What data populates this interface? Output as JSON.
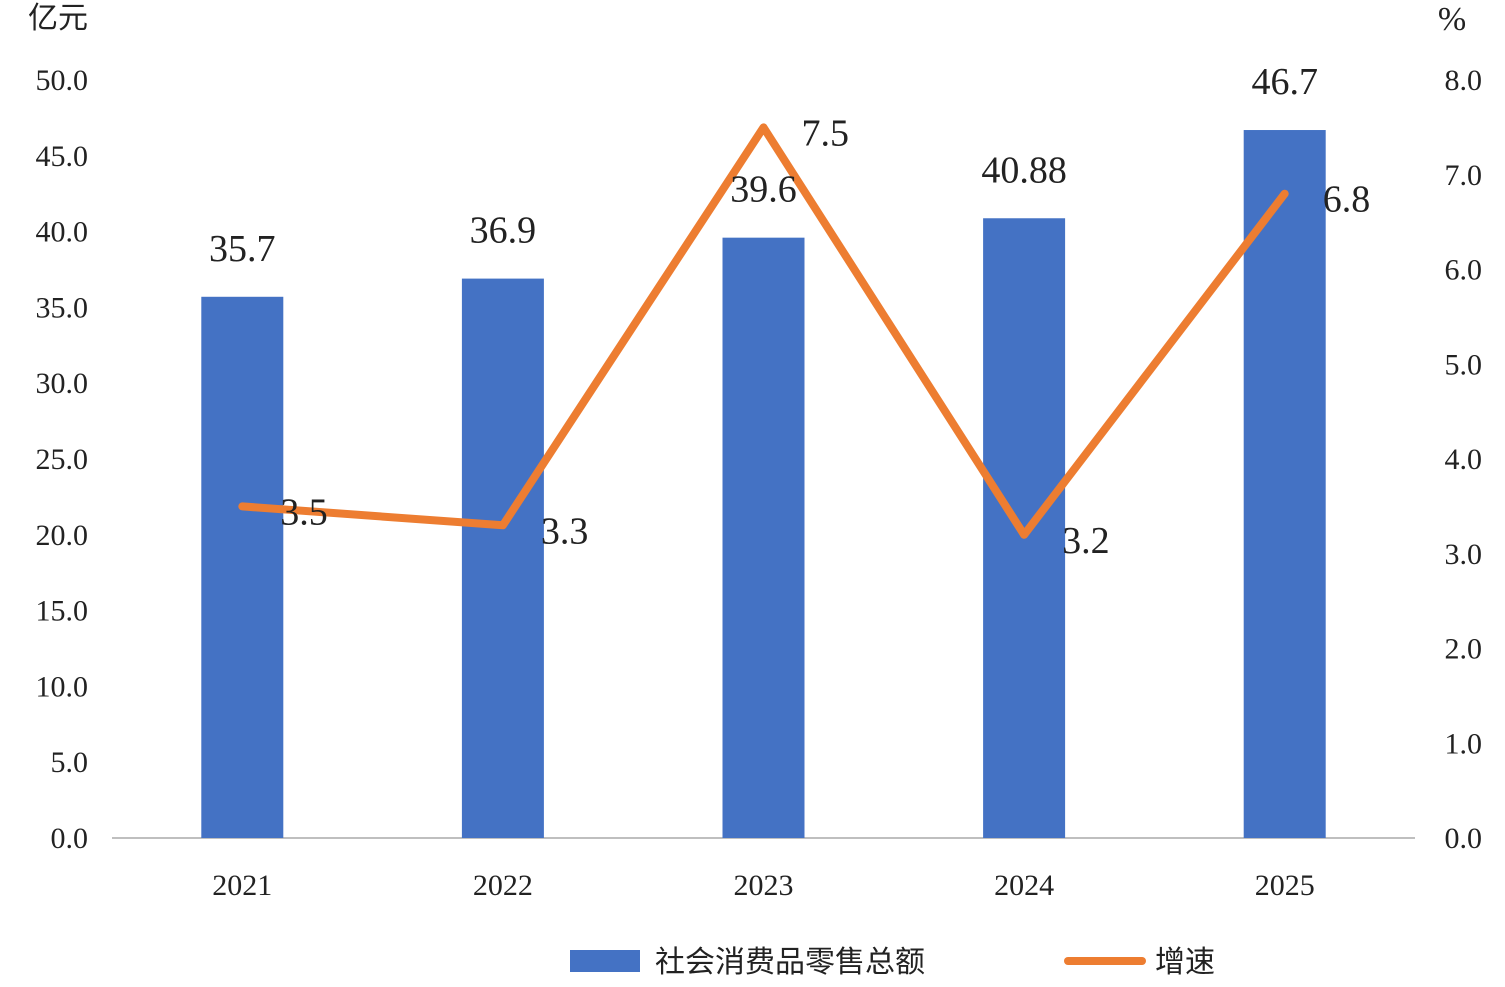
{
  "chart_data": {
    "type": "bar",
    "title": "",
    "left_unit": "亿元",
    "right_unit": "%",
    "categories": [
      "2021",
      "2022",
      "2023",
      "2024",
      "2025"
    ],
    "left_ylim": [
      0,
      50
    ],
    "left_ticks": [
      "0.0",
      "5.0",
      "10.0",
      "15.0",
      "20.0",
      "25.0",
      "30.0",
      "35.0",
      "40.0",
      "45.0",
      "50.0"
    ],
    "right_ylim": [
      0,
      8
    ],
    "right_ticks": [
      "0.0",
      "1.0",
      "2.0",
      "3.0",
      "4.0",
      "5.0",
      "6.0",
      "7.0",
      "8.0"
    ],
    "grid": false,
    "legend_position": "bottom",
    "series": [
      {
        "name": "社会消费品零售总额",
        "type": "bar",
        "axis": "left",
        "color": "#4472C4",
        "values": [
          35.7,
          36.9,
          39.6,
          40.88,
          46.7
        ],
        "labels": [
          "35.7",
          "36.9",
          "39.6",
          "40.88",
          "46.7"
        ]
      },
      {
        "name": "增速",
        "type": "line",
        "axis": "right",
        "color": "#ED7D31",
        "values": [
          3.5,
          3.3,
          7.5,
          3.2,
          6.8
        ],
        "labels": [
          "3.5",
          "3.3",
          "7.5",
          "3.2",
          "6.8"
        ]
      }
    ]
  }
}
